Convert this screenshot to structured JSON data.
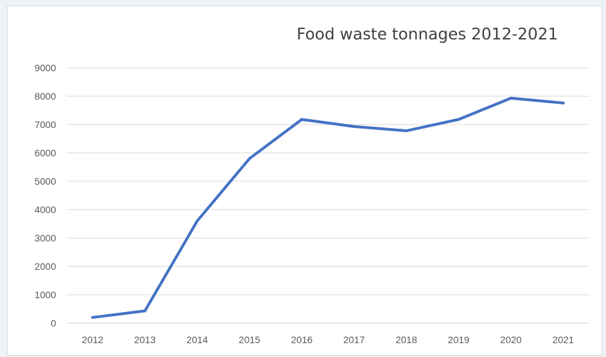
{
  "chart_data": {
    "type": "line",
    "title": "Food waste tonnages 2012-2021",
    "xlabel": "",
    "ylabel": "",
    "categories": [
      "2012",
      "2013",
      "2014",
      "2015",
      "2016",
      "2017",
      "2018",
      "2019",
      "2020",
      "2021"
    ],
    "series": [
      {
        "values": [
          200,
          430,
          3600,
          5800,
          7180,
          6930,
          6780,
          7180,
          7930,
          7760
        ],
        "color": "#4472c4"
      }
    ],
    "ylim": [
      0,
      9000
    ],
    "yticks": [
      "0",
      "1000",
      "2000",
      "3000",
      "4000",
      "5000",
      "6000",
      "7000",
      "8000",
      "9000"
    ],
    "grid": true,
    "legend": "none"
  }
}
